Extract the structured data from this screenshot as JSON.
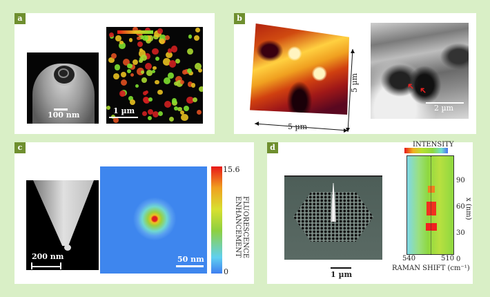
{
  "panels": {
    "a": {
      "label": "a",
      "sem_scale": "100 nm",
      "fluor_scale": "1 µm"
    },
    "b": {
      "label": "b",
      "afm_x_scale": "5 µm",
      "afm_y_scale": "5 µm",
      "sem_scale": "2 µm",
      "arrow_color": "#e52020"
    },
    "c": {
      "label": "c",
      "tip_scale": "200 nm",
      "map_scale": "50 nm",
      "colorbar_label_line1": "FLUORESCENCE",
      "colorbar_label_line2": "ENHANCEMENT",
      "colorbar_max": "15.6",
      "colorbar_min": "0"
    },
    "d": {
      "label": "d",
      "sem_scale": "1 µm",
      "intensity_label": "INTENSITY",
      "y_axis_label": "x (nm)",
      "y_ticks": [
        "90",
        "60",
        "30",
        "0"
      ],
      "x_ticks": [
        "540",
        "510"
      ],
      "x_axis_label": "RAMAN SHIFT (cm⁻¹)"
    }
  },
  "colors": {
    "background": "#d9efc6",
    "label_box": "#6f8f2f"
  }
}
